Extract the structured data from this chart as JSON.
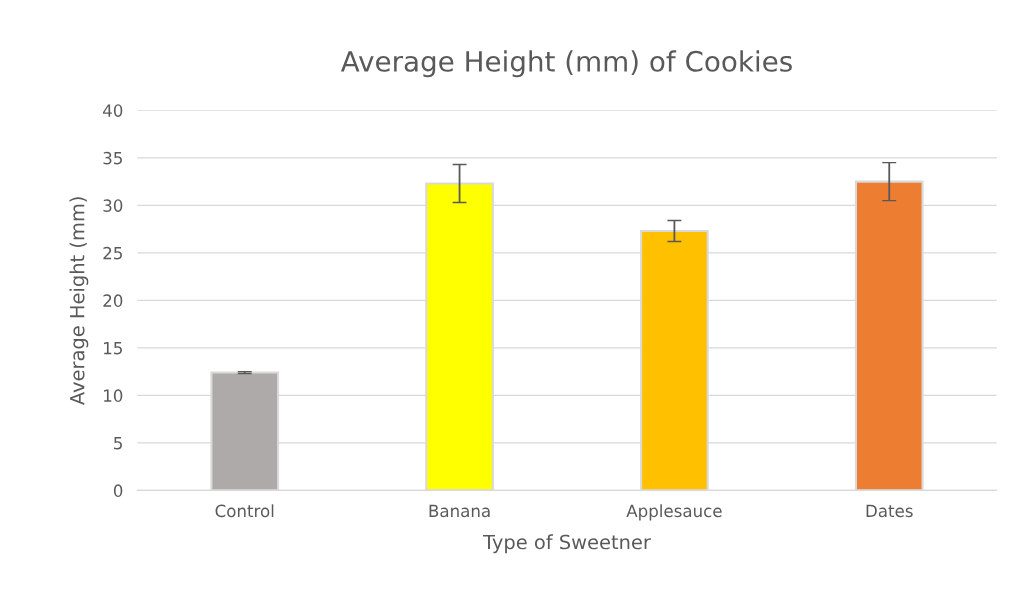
{
  "chart_data": {
    "type": "bar",
    "title": "Average Height (mm) of Cookies",
    "xlabel": "Type of Sweetner",
    "ylabel": "Average Height (mm)",
    "categories": [
      "Control",
      "Banana",
      "Applesauce",
      "Dates"
    ],
    "values": [
      12.4,
      32.3,
      27.3,
      32.5
    ],
    "colors": [
      "#aeaaaa",
      "#ffff00",
      "#ffc000",
      "#ed7d31"
    ],
    "errors": [
      0.1,
      2.0,
      1.1,
      2.0
    ],
    "ylim": [
      0,
      40
    ],
    "yticks": [
      0,
      5,
      10,
      15,
      20,
      25,
      30,
      35,
      40
    ],
    "grid": "y",
    "legend": false
  }
}
